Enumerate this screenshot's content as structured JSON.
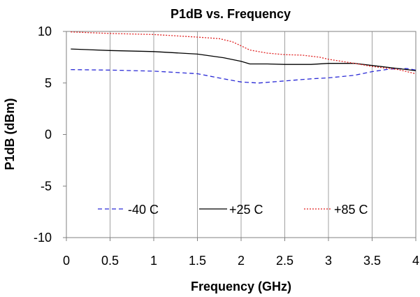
{
  "chart_data": {
    "type": "line",
    "title": "P1dB vs. Frequency",
    "xlabel": "Frequency (GHz)",
    "ylabel": "P1dB (dBm)",
    "xlim": [
      0,
      4
    ],
    "ylim": [
      -10,
      10
    ],
    "x_ticks": [
      "0",
      "0.5",
      "1",
      "1.5",
      "2",
      "2.5",
      "3",
      "3.5",
      "4"
    ],
    "y_ticks": [
      "10",
      "5",
      "0",
      "-5",
      "-10"
    ],
    "grid": "vertical gridlines",
    "legend_position": "lower-center",
    "series": [
      {
        "name": "-40 C",
        "color": "#2a2ad6",
        "dash": "dashed",
        "x": [
          0.05,
          0.5,
          1.0,
          1.5,
          1.8,
          2.0,
          2.2,
          2.5,
          2.8,
          3.0,
          3.3,
          3.5,
          3.7,
          3.9,
          4.0
        ],
        "y": [
          6.3,
          6.25,
          6.15,
          5.9,
          5.4,
          5.1,
          5.0,
          5.2,
          5.4,
          5.5,
          5.75,
          6.1,
          6.35,
          6.4,
          6.25
        ]
      },
      {
        "name": "+25 C",
        "color": "#000000",
        "dash": "solid",
        "x": [
          0.05,
          0.5,
          1.0,
          1.5,
          1.8,
          2.0,
          2.1,
          2.3,
          2.5,
          2.8,
          3.0,
          3.3,
          3.5,
          3.8,
          4.0
        ],
        "y": [
          8.3,
          8.15,
          8.05,
          7.8,
          7.45,
          7.1,
          6.85,
          6.85,
          6.8,
          6.8,
          6.9,
          6.9,
          6.7,
          6.4,
          6.2
        ]
      },
      {
        "name": "+85 C",
        "color": "#e02020",
        "dash": "dotted",
        "x": [
          0.05,
          0.5,
          1.0,
          1.5,
          1.75,
          1.9,
          2.0,
          2.1,
          2.3,
          2.5,
          2.7,
          2.9,
          3.0,
          3.3,
          3.5,
          3.8,
          4.0
        ],
        "y": [
          9.95,
          9.8,
          9.7,
          9.45,
          9.3,
          9.0,
          8.6,
          8.2,
          7.9,
          7.75,
          7.7,
          7.5,
          7.3,
          6.9,
          6.6,
          6.3,
          5.9
        ]
      }
    ]
  }
}
